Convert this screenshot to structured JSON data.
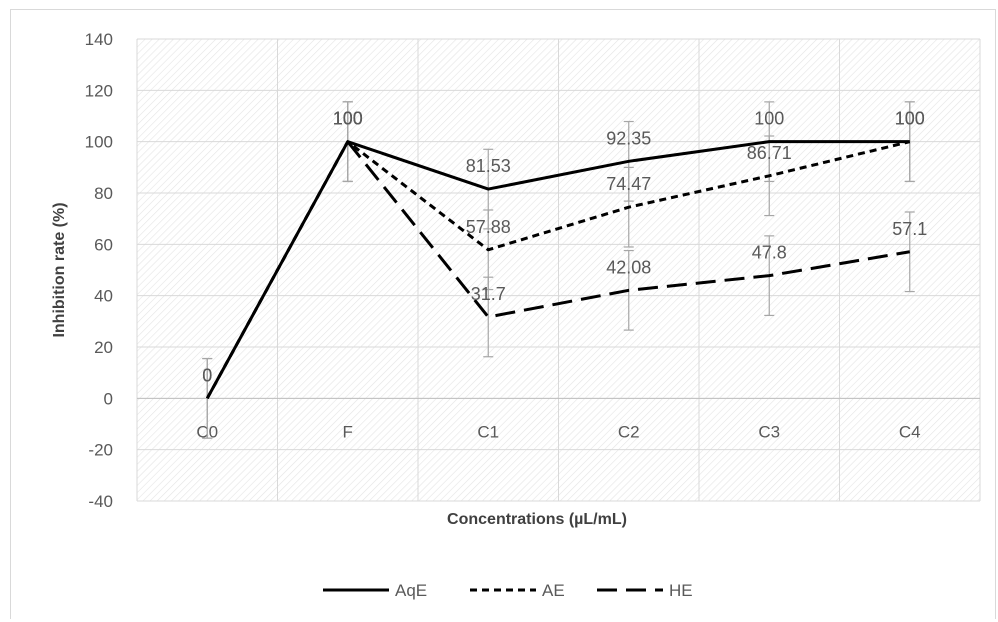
{
  "chart_data": {
    "type": "line",
    "title": "",
    "xlabel": "Concentrations (µL/mL)",
    "ylabel": "Inhibition rate (%)",
    "categories": [
      "C0",
      "F",
      "C1",
      "C2",
      "C3",
      "C4"
    ],
    "ylim": [
      -40,
      140
    ],
    "yticks": [
      "-40",
      "-20",
      "0",
      "20",
      "40",
      "60",
      "80",
      "100",
      "120",
      "140"
    ],
    "grid": true,
    "legend_position": "bottom",
    "error_bar": 15.5,
    "series": [
      {
        "name": "AqE",
        "values": [
          0,
          100,
          81.53,
          92.35,
          100,
          100
        ],
        "labels": [
          "0",
          "100",
          "81.53",
          "92.35",
          "100",
          "100"
        ],
        "dash": "solid",
        "color": "#000000"
      },
      {
        "name": "AE",
        "values": [
          0,
          100,
          57.88,
          74.47,
          86.71,
          100
        ],
        "labels": [
          "0",
          "100",
          "57.88",
          "74.47",
          "86.71",
          "100"
        ],
        "dash": "short",
        "color": "#000000"
      },
      {
        "name": "HE",
        "values": [
          null,
          100,
          31.7,
          42.08,
          47.8,
          57.1
        ],
        "labels": [
          "",
          "100",
          "31.7",
          "42.08",
          "47.8",
          "57.1"
        ],
        "dash": "long",
        "color": "#000000"
      }
    ],
    "colors": {
      "grid": "#d9d9d9",
      "error_bar": "#a6a6a6",
      "text": "#595959",
      "axis_title": "#404040"
    }
  }
}
